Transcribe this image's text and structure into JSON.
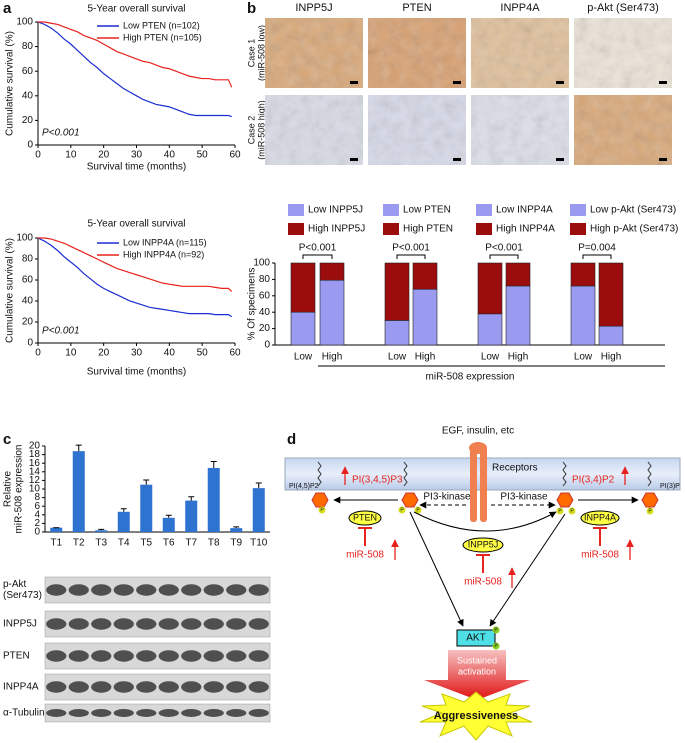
{
  "panel_labels": [
    "a",
    "b",
    "c",
    "d"
  ],
  "chart_data": [
    {
      "type": "line",
      "title": "5-Year overall survival",
      "xlabel": "Survival time (months)",
      "ylabel": "Cumulative survival (%)",
      "annotation": "P<0.001",
      "x": [
        0,
        2,
        4,
        6,
        8,
        10,
        12,
        14,
        16,
        18,
        20,
        22,
        24,
        26,
        28,
        30,
        32,
        34,
        36,
        38,
        40,
        42,
        44,
        46,
        48,
        50,
        52,
        54,
        56,
        58,
        59
      ],
      "xlim": [
        0,
        60
      ],
      "xticks": [
        0,
        10,
        20,
        30,
        40,
        50,
        60
      ],
      "ylim": [
        0,
        100
      ],
      "yticks": [
        0,
        20,
        40,
        60,
        80,
        100
      ],
      "series": [
        {
          "name": "Low PTEN (n=102)",
          "color": "#1a2fd0",
          "values": [
            100,
            98,
            95,
            91,
            86,
            82,
            77,
            72,
            67,
            63,
            58,
            54,
            50,
            46,
            43,
            40,
            37,
            35,
            33,
            32,
            31,
            29,
            27,
            25,
            24,
            24,
            24,
            24,
            24,
            24,
            23
          ]
        },
        {
          "name": "High PTEN (n=105)",
          "color": "#e8231e",
          "values": [
            100,
            100,
            99,
            98,
            96,
            94,
            92,
            89,
            87,
            85,
            82,
            79,
            76,
            74,
            72,
            70,
            68,
            67,
            65,
            63,
            62,
            60,
            58,
            56,
            55,
            54,
            54,
            53,
            53,
            53,
            47
          ]
        }
      ]
    },
    {
      "type": "line",
      "title": "5-Year overall survival",
      "xlabel": "Survival time (months)",
      "ylabel": "Cumulative survival (%)",
      "annotation": "P<0.001",
      "x": [
        0,
        2,
        4,
        6,
        8,
        10,
        12,
        14,
        16,
        18,
        20,
        22,
        24,
        26,
        28,
        30,
        32,
        34,
        36,
        38,
        40,
        42,
        44,
        46,
        48,
        50,
        52,
        54,
        56,
        58,
        59
      ],
      "xlim": [
        0,
        60
      ],
      "xticks": [
        0,
        10,
        20,
        30,
        40,
        50,
        60
      ],
      "ylim": [
        0,
        100
      ],
      "yticks": [
        0,
        20,
        40,
        60,
        80,
        100
      ],
      "series": [
        {
          "name": "Low INPP4A (n=115)",
          "color": "#1a2fd0",
          "values": [
            100,
            97,
            93,
            88,
            82,
            77,
            72,
            66,
            61,
            56,
            52,
            49,
            46,
            43,
            40,
            38,
            36,
            34,
            33,
            32,
            31,
            30,
            29,
            28,
            28,
            28,
            28,
            27,
            27,
            27,
            25
          ]
        },
        {
          "name": "High INPP4A (n=92)",
          "color": "#e8231e",
          "values": [
            100,
            100,
            99,
            97,
            95,
            92,
            89,
            86,
            83,
            80,
            77,
            74,
            71,
            69,
            67,
            65,
            63,
            61,
            59,
            57,
            56,
            55,
            54,
            54,
            54,
            54,
            54,
            53,
            52,
            52,
            49
          ]
        }
      ]
    },
    {
      "type": "stacked-bar",
      "ylabel": "% Of specimens",
      "xlabel": "miR-508 expression",
      "ylim": [
        0,
        100
      ],
      "yticks": [
        0,
        20,
        40,
        60,
        80,
        100
      ],
      "groups": [
        {
          "p_value": "P<0.001",
          "categories": [
            "Low",
            "High"
          ],
          "series": [
            {
              "name": "Low INPP5J",
              "color": "#9a9af0",
              "values": [
                40,
                79
              ]
            },
            {
              "name": "High INPP5J",
              "color": "#9b0d0d",
              "values": [
                60,
                21
              ]
            }
          ]
        },
        {
          "p_value": "P<0.001",
          "categories": [
            "Low",
            "High"
          ],
          "series": [
            {
              "name": "Low PTEN",
              "color": "#9a9af0",
              "values": [
                30,
                68
              ]
            },
            {
              "name": "High PTEN",
              "color": "#9b0d0d",
              "values": [
                70,
                32
              ]
            }
          ]
        },
        {
          "p_value": "P<0.001",
          "categories": [
            "Low",
            "High"
          ],
          "series": [
            {
              "name": "Low INPP4A",
              "color": "#9a9af0",
              "values": [
                38,
                72
              ]
            },
            {
              "name": "High INPP4A",
              "color": "#9b0d0d",
              "values": [
                62,
                28
              ]
            }
          ]
        },
        {
          "p_value": "P=0.004",
          "categories": [
            "Low",
            "High"
          ],
          "series": [
            {
              "name": "Low p-Akt (Ser473)",
              "color": "#9a9af0",
              "values": [
                72,
                23
              ]
            },
            {
              "name": "High p-Akt (Ser473)",
              "color": "#9b0d0d",
              "values": [
                28,
                77
              ]
            }
          ]
        }
      ]
    },
    {
      "type": "bar",
      "ylabel": [
        "Relative",
        "miR-508 expression"
      ],
      "categories": [
        "T1",
        "T2",
        "T3",
        "T4",
        "T5",
        "T6",
        "T7",
        "T8",
        "T9",
        "T10"
      ],
      "values": [
        1,
        18.8,
        0.4,
        4.7,
        11,
        3.3,
        7.3,
        14.9,
        0.9,
        10.2
      ],
      "errors": [
        0,
        1.4,
        0.2,
        0.7,
        1.1,
        0.6,
        0.9,
        1.5,
        0.3,
        1.2
      ],
      "color": "#2f73d0",
      "ylim": [
        0,
        20
      ],
      "yticks": [
        0,
        2,
        4,
        6,
        8,
        10,
        12,
        14,
        16,
        18,
        20
      ]
    }
  ],
  "ihc_images": {
    "columns": [
      "INPP5J",
      "PTEN",
      "INPP4A",
      "p-Akt (Ser473)"
    ],
    "rows": [
      [
        "Case 1",
        "(miR-508 low)"
      ],
      [
        "Case 2",
        "(miR-508 high)"
      ]
    ]
  },
  "western_blot": {
    "rows": [
      [
        "p-Akt",
        "(Ser473)"
      ],
      [
        "INPP5J"
      ],
      [
        "PTEN"
      ],
      [
        "INPP4A"
      ],
      [
        "α-Tubulin"
      ]
    ]
  },
  "diagram": {
    "stimulus": "EGF, insulin, etc",
    "receptor": "Receptors",
    "lipids": [
      "PI(4,5)P2",
      "PI(3,4,5)P3",
      "PI(3,4)P2",
      "PI(3)P"
    ],
    "kinase": [
      "PI3-kinase",
      "PI3-kinase"
    ],
    "phosphatases": [
      "PTEN",
      "INPP5J",
      "INPP4A"
    ],
    "inhibitor": [
      "miR-508",
      "miR-508",
      "miR-508"
    ],
    "akt": "AKT",
    "activation": [
      "Sustained",
      "activation"
    ],
    "outcome": "Aggressiveness",
    "phosphate": "P"
  }
}
